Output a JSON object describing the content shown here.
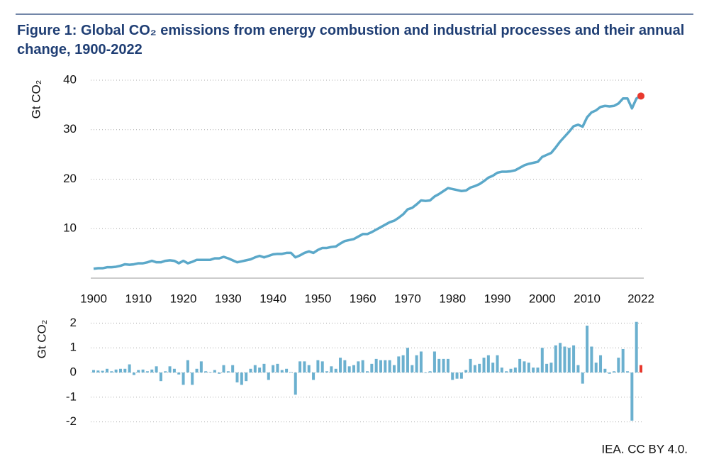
{
  "title": "Figure 1: Global CO₂ emissions from energy combustion and industrial processes and their annual change, 1900-2022",
  "source": "IEA. CC BY 4.0.",
  "chart_data": [
    {
      "type": "line",
      "y_label": "Gt CO₂",
      "color": "#5ba8c9",
      "highlight_color": "#e8392e",
      "grid": true,
      "xlim": [
        1900,
        2022
      ],
      "xticks": [
        1900,
        1910,
        1920,
        1930,
        1940,
        1950,
        1960,
        1970,
        1980,
        1990,
        2000,
        2010,
        2022
      ],
      "ylim": [
        0,
        40
      ],
      "yticks": [
        10,
        20,
        30,
        40
      ],
      "x": [
        1900,
        1901,
        1902,
        1903,
        1904,
        1905,
        1906,
        1907,
        1908,
        1909,
        1910,
        1911,
        1912,
        1913,
        1914,
        1915,
        1916,
        1917,
        1918,
        1919,
        1920,
        1921,
        1922,
        1923,
        1924,
        1925,
        1926,
        1927,
        1928,
        1929,
        1930,
        1931,
        1932,
        1933,
        1934,
        1935,
        1936,
        1937,
        1938,
        1939,
        1940,
        1941,
        1942,
        1943,
        1944,
        1945,
        1946,
        1947,
        1948,
        1949,
        1950,
        1951,
        1952,
        1953,
        1954,
        1955,
        1956,
        1957,
        1958,
        1959,
        1960,
        1961,
        1962,
        1963,
        1964,
        1965,
        1966,
        1967,
        1968,
        1969,
        1970,
        1971,
        1972,
        1973,
        1974,
        1975,
        1976,
        1977,
        1978,
        1979,
        1980,
        1981,
        1982,
        1983,
        1984,
        1985,
        1986,
        1987,
        1988,
        1989,
        1990,
        1991,
        1992,
        1993,
        1994,
        1995,
        1996,
        1997,
        1998,
        1999,
        2000,
        2001,
        2002,
        2003,
        2004,
        2005,
        2006,
        2007,
        2008,
        2009,
        2010,
        2011,
        2012,
        2013,
        2014,
        2015,
        2016,
        2017,
        2018,
        2019,
        2020,
        2021,
        2022
      ],
      "values": [
        1.9,
        2.0,
        2.0,
        2.2,
        2.2,
        2.3,
        2.5,
        2.8,
        2.7,
        2.8,
        3.0,
        3.0,
        3.2,
        3.5,
        3.2,
        3.2,
        3.5,
        3.6,
        3.5,
        3.0,
        3.5,
        3.0,
        3.3,
        3.7,
        3.7,
        3.7,
        3.7,
        4.0,
        4.0,
        4.3,
        4.0,
        3.6,
        3.2,
        3.4,
        3.6,
        3.8,
        4.2,
        4.5,
        4.2,
        4.5,
        4.8,
        4.9,
        4.9,
        5.1,
        5.1,
        4.2,
        4.6,
        5.1,
        5.4,
        5.1,
        5.7,
        6.1,
        6.1,
        6.3,
        6.4,
        7.0,
        7.5,
        7.7,
        7.9,
        8.4,
        8.9,
        8.9,
        9.3,
        9.8,
        10.3,
        10.8,
        11.3,
        11.6,
        12.2,
        12.9,
        13.9,
        14.2,
        14.9,
        15.7,
        15.6,
        15.7,
        16.5,
        17.0,
        17.6,
        18.2,
        18.0,
        17.8,
        17.6,
        17.7,
        18.3,
        18.6,
        19.0,
        19.6,
        20.3,
        20.7,
        21.3,
        21.5,
        21.5,
        21.6,
        21.8,
        22.3,
        22.8,
        23.1,
        23.3,
        23.5,
        24.5,
        24.9,
        25.3,
        26.4,
        27.6,
        28.6,
        29.6,
        30.7,
        31.0,
        30.6,
        32.5,
        33.5,
        33.9,
        34.6,
        34.8,
        34.7,
        34.8,
        35.3,
        36.3,
        36.3,
        34.3,
        36.3,
        36.8
      ]
    },
    {
      "type": "bar",
      "y_label": "Gt CO₂",
      "color": "#6bb0cf",
      "highlight_color": "#e8392e",
      "grid": true,
      "xlim": [
        1900,
        2022
      ],
      "ylim": [
        -2.3,
        2.3
      ],
      "yticks": [
        -2,
        -1,
        0,
        1,
        2
      ],
      "x": [
        1900,
        1901,
        1902,
        1903,
        1904,
        1905,
        1906,
        1907,
        1908,
        1909,
        1910,
        1911,
        1912,
        1913,
        1914,
        1915,
        1916,
        1917,
        1918,
        1919,
        1920,
        1921,
        1922,
        1923,
        1924,
        1925,
        1926,
        1927,
        1928,
        1929,
        1930,
        1931,
        1932,
        1933,
        1934,
        1935,
        1936,
        1937,
        1938,
        1939,
        1940,
        1941,
        1942,
        1943,
        1944,
        1945,
        1946,
        1947,
        1948,
        1949,
        1950,
        1951,
        1952,
        1953,
        1954,
        1955,
        1956,
        1957,
        1958,
        1959,
        1960,
        1961,
        1962,
        1963,
        1964,
        1965,
        1966,
        1967,
        1968,
        1969,
        1970,
        1971,
        1972,
        1973,
        1974,
        1975,
        1976,
        1977,
        1978,
        1979,
        1980,
        1981,
        1982,
        1983,
        1984,
        1985,
        1986,
        1987,
        1988,
        1989,
        1990,
        1991,
        1992,
        1993,
        1994,
        1995,
        1996,
        1997,
        1998,
        1999,
        2000,
        2001,
        2002,
        2003,
        2004,
        2005,
        2006,
        2007,
        2008,
        2009,
        2010,
        2011,
        2012,
        2013,
        2014,
        2015,
        2016,
        2017,
        2018,
        2019,
        2020,
        2021,
        2022
      ],
      "values": [
        0.1,
        0.08,
        0.07,
        0.15,
        0.05,
        0.12,
        0.15,
        0.15,
        0.33,
        -0.1,
        0.1,
        0.12,
        0.05,
        0.12,
        0.25,
        -0.35,
        0.05,
        0.25,
        0.15,
        -0.08,
        -0.5,
        0.5,
        -0.5,
        0.15,
        0.45,
        0.05,
        0.02,
        0.1,
        -0.05,
        0.3,
        0.05,
        0.3,
        -0.4,
        -0.5,
        -0.35,
        0.15,
        0.3,
        0.2,
        0.35,
        -0.3,
        0.3,
        0.35,
        0.1,
        0.15,
        0.02,
        -0.9,
        0.45,
        0.45,
        0.3,
        -0.3,
        0.5,
        0.45,
        0.05,
        0.25,
        0.15,
        0.6,
        0.5,
        0.25,
        0.3,
        0.45,
        0.5,
        0.05,
        0.35,
        0.55,
        0.5,
        0.5,
        0.5,
        0.3,
        0.65,
        0.7,
        1.0,
        0.3,
        0.7,
        0.85,
        -0.02,
        0.05,
        0.85,
        0.55,
        0.55,
        0.55,
        -0.3,
        -0.25,
        -0.25,
        0.1,
        0.55,
        0.3,
        0.35,
        0.6,
        0.7,
        0.4,
        0.7,
        0.2,
        0.05,
        0.15,
        0.2,
        0.55,
        0.45,
        0.4,
        0.2,
        0.2,
        1.0,
        0.35,
        0.4,
        1.1,
        1.2,
        1.05,
        1.0,
        1.1,
        0.3,
        -0.45,
        1.9,
        1.05,
        0.4,
        0.7,
        0.15,
        -0.05,
        0.05,
        0.6,
        0.95,
        0.05,
        -1.95,
        2.05,
        0.3
      ]
    }
  ]
}
